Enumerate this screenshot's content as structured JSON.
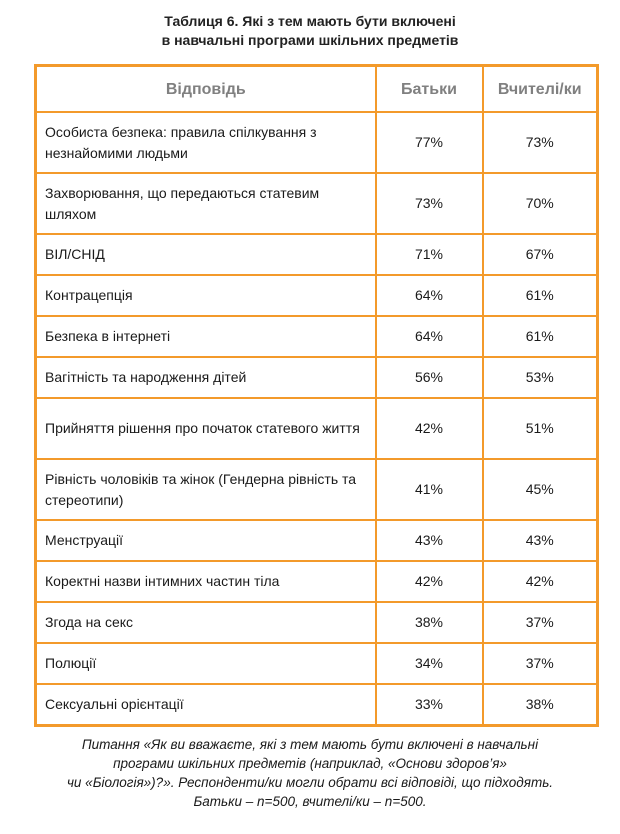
{
  "title": {
    "line1": "Таблиця 6. Які з тем мають бути включені",
    "line2": "в навчальні програми шкільних предметів"
  },
  "table": {
    "headers": [
      "Відповідь",
      "Батьки",
      "Вчителі/ки"
    ],
    "rows": [
      {
        "answer": "Особиста безпека: правила спілкування з незнайомими людьми",
        "parents": "77%",
        "teachers": "73%"
      },
      {
        "answer": "Захворювання, що передаються статевим шляхом",
        "parents": "73%",
        "teachers": "70%"
      },
      {
        "answer": "ВІЛ/СНІД",
        "parents": "71%",
        "teachers": "67%"
      },
      {
        "answer": "Контрацепція",
        "parents": "64%",
        "teachers": "61%"
      },
      {
        "answer": "Безпека в інтернеті",
        "parents": "64%",
        "teachers": "61%"
      },
      {
        "answer": "Вагітність та народження дітей",
        "parents": "56%",
        "teachers": "53%"
      },
      {
        "answer": "Прийняття рішення про початок статевого життя",
        "parents": "42%",
        "teachers": "51%"
      },
      {
        "answer": "Рівність чоловіків та жінок (Гендерна рівність та стереотипи)",
        "parents": "41%",
        "teachers": "45%"
      },
      {
        "answer": "Менструації",
        "parents": "43%",
        "teachers": "43%"
      },
      {
        "answer": "Коректні назви інтимних частин тіла",
        "parents": "42%",
        "teachers": "42%"
      },
      {
        "answer": "Згода на секс",
        "parents": "38%",
        "teachers": "37%"
      },
      {
        "answer": "Полюції",
        "parents": "34%",
        "teachers": "37%"
      },
      {
        "answer": "Сексуальні орієнтації",
        "parents": "33%",
        "teachers": "38%"
      }
    ]
  },
  "caption": {
    "line1": "Питання «Як ви вважаєте, які з тем мають бути включені в навчальні",
    "line2": "програми шкільних предметів (наприклад, «Основи здоров’я»",
    "line3": "чи «Біологія»)?». Респонденти/ки могли обрати всі відповіді, що підходять.",
    "line4": "Батьки – n=500, вчителі/ки – n=500."
  },
  "colors": {
    "border": "#f39a2b",
    "header_text": "#808080"
  }
}
